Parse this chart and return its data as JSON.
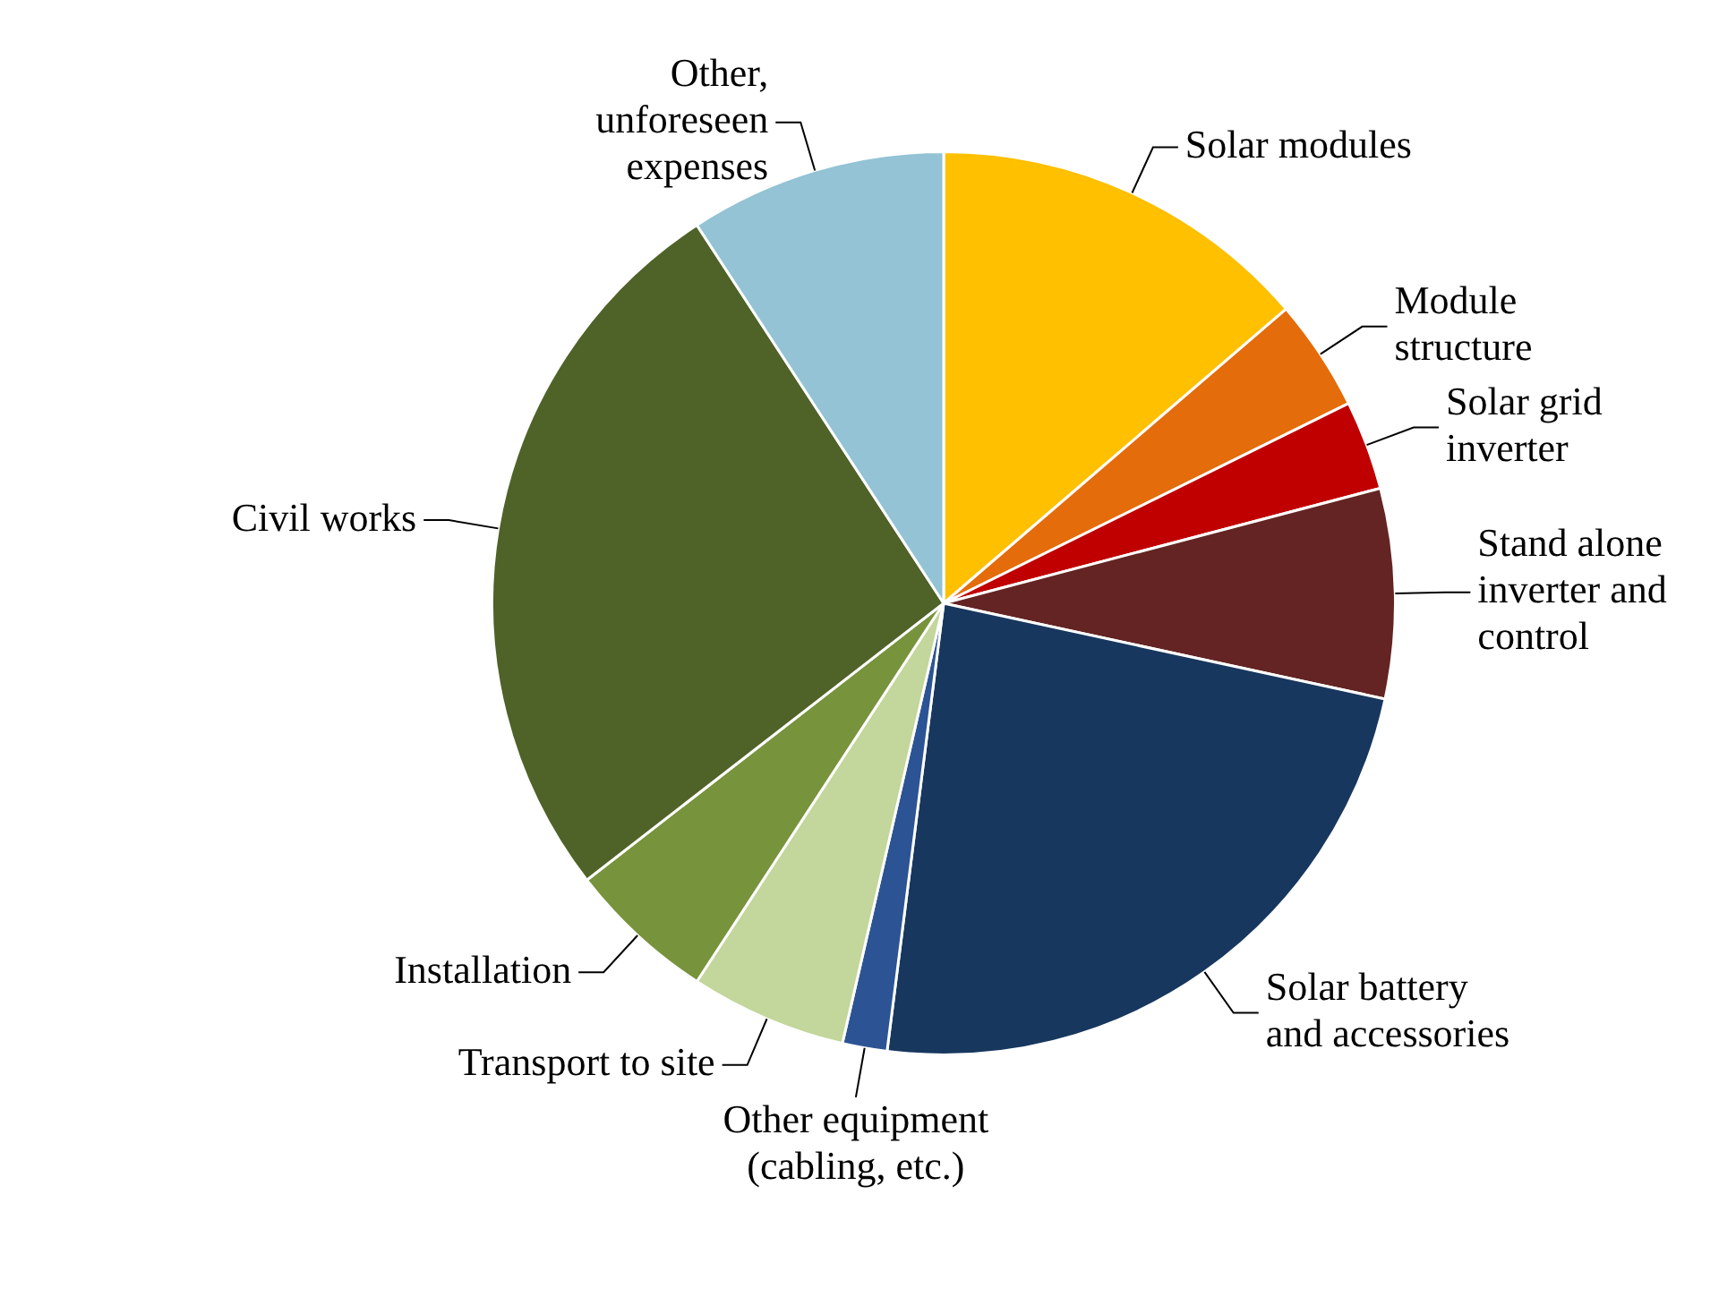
{
  "chart_data": {
    "type": "pie",
    "categories": [
      "Solar modules",
      "Module structure",
      "Solar grid inverter",
      "Stand alone inverter and control",
      "Solar battery and accessories",
      "Other equipment (cabling, etc.)",
      "Transport to site",
      "Installation",
      "Civil works",
      "Other, unforeseen expenses"
    ],
    "values": [
      13.7,
      4.0,
      3.2,
      7.5,
      23.6,
      1.6,
      5.6,
      5.3,
      26.3,
      9.2
    ],
    "colors": [
      "#ffc000",
      "#e46c0a",
      "#c00000",
      "#632423",
      "#17375e",
      "#2c5494",
      "#c3d69b",
      "#77933c",
      "#4f6228",
      "#93c3d5"
    ],
    "legend": false
  }
}
